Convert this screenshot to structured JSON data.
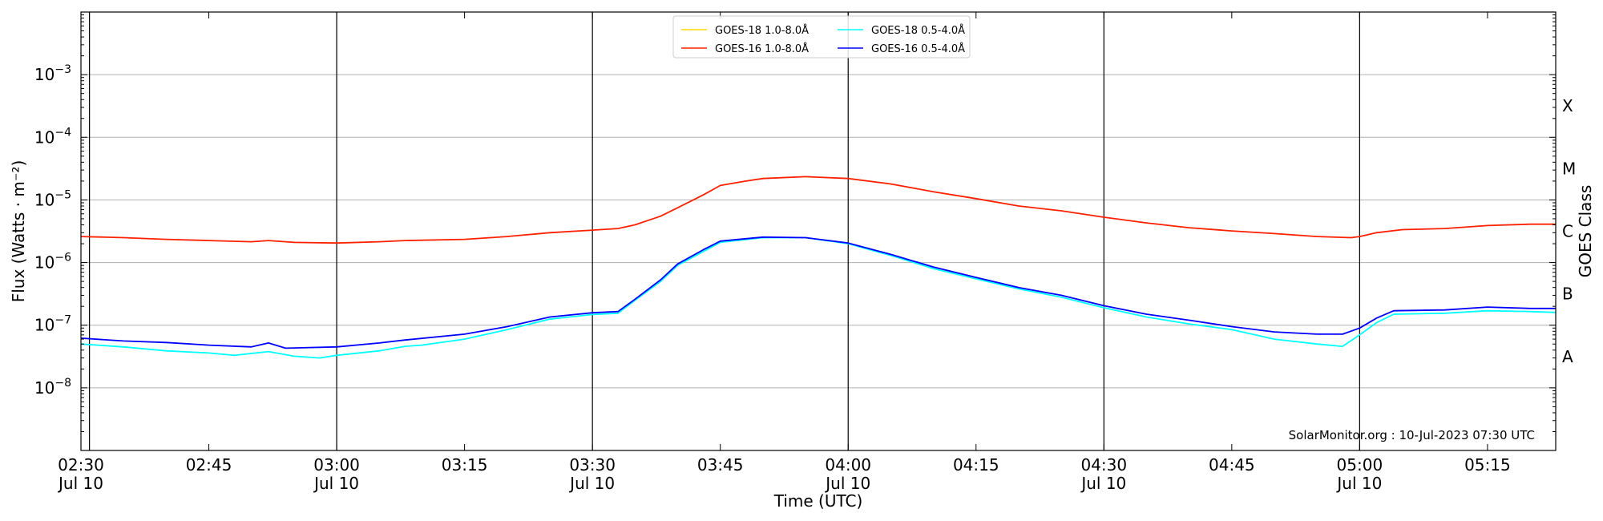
{
  "chart_data": {
    "type": "line",
    "title": "",
    "xlabel": "Time (UTC)",
    "ylabel": "Flux (Watts · m⁻²)",
    "ylabel_right": "GOES Class",
    "y_scale": "log",
    "ylim": [
      1e-09,
      0.01
    ],
    "xlim": [
      "2023-07-10 02:30",
      "2023-07-10 05:23"
    ],
    "grid": "horizontal at decades",
    "legend_placement": "top-center",
    "x_ticks": [
      {
        "time": "02:30",
        "label": "02:30",
        "sublabel": "Jul 10"
      },
      {
        "time": "02:45",
        "label": "02:45",
        "sublabel": ""
      },
      {
        "time": "03:00",
        "label": "03:00",
        "sublabel": "Jul 10"
      },
      {
        "time": "03:15",
        "label": "03:15",
        "sublabel": ""
      },
      {
        "time": "03:30",
        "label": "03:30",
        "sublabel": "Jul 10"
      },
      {
        "time": "03:45",
        "label": "03:45",
        "sublabel": ""
      },
      {
        "time": "04:00",
        "label": "04:00",
        "sublabel": "Jul 10"
      },
      {
        "time": "04:15",
        "label": "04:15",
        "sublabel": ""
      },
      {
        "time": "04:30",
        "label": "04:30",
        "sublabel": "Jul 10"
      },
      {
        "time": "04:45",
        "label": "04:45",
        "sublabel": ""
      },
      {
        "time": "05:00",
        "label": "05:00",
        "sublabel": "Jul 10"
      },
      {
        "time": "05:15",
        "label": "05:15",
        "sublabel": ""
      }
    ],
    "vertical_lines": [
      "02:31",
      "03:00",
      "03:30",
      "04:00",
      "04:30",
      "05:00"
    ],
    "y_ticks": [
      {
        "exp": -8,
        "label": "10",
        "sup": "−8"
      },
      {
        "exp": -7,
        "label": "10",
        "sup": "−7"
      },
      {
        "exp": -6,
        "label": "10",
        "sup": "−6"
      },
      {
        "exp": -5,
        "label": "10",
        "sup": "−5"
      },
      {
        "exp": -4,
        "label": "10",
        "sup": "−4"
      },
      {
        "exp": -3,
        "label": "10",
        "sup": "−3"
      }
    ],
    "goes_classes": [
      {
        "label": "A",
        "exp": -7.5
      },
      {
        "label": "B",
        "exp": -6.5
      },
      {
        "label": "C",
        "exp": -5.5
      },
      {
        "label": "M",
        "exp": -4.5
      },
      {
        "label": "X",
        "exp": -3.5
      }
    ],
    "series": [
      {
        "name": "GOES-18 1.0-8.0Å",
        "color": "#ffd700",
        "points": []
      },
      {
        "name": "GOES-16 1.0-8.0Å",
        "color": "#ff2000",
        "points": [
          [
            "02:30",
            2.6e-06
          ],
          [
            "02:35",
            2.5e-06
          ],
          [
            "02:40",
            2.35e-06
          ],
          [
            "02:45",
            2.25e-06
          ],
          [
            "02:50",
            2.15e-06
          ],
          [
            "02:52",
            2.25e-06
          ],
          [
            "02:55",
            2.1e-06
          ],
          [
            "03:00",
            2.05e-06
          ],
          [
            "03:05",
            2.15e-06
          ],
          [
            "03:08",
            2.25e-06
          ],
          [
            "03:15",
            2.35e-06
          ],
          [
            "03:20",
            2.6e-06
          ],
          [
            "03:25",
            3e-06
          ],
          [
            "03:30",
            3.3e-06
          ],
          [
            "03:33",
            3.5e-06
          ],
          [
            "03:35",
            4e-06
          ],
          [
            "03:38",
            5.5e-06
          ],
          [
            "03:40",
            7.5e-06
          ],
          [
            "03:43",
            1.2e-05
          ],
          [
            "03:45",
            1.7e-05
          ],
          [
            "03:48",
            2e-05
          ],
          [
            "03:50",
            2.2e-05
          ],
          [
            "03:55",
            2.35e-05
          ],
          [
            "04:00",
            2.2e-05
          ],
          [
            "04:05",
            1.8e-05
          ],
          [
            "04:10",
            1.35e-05
          ],
          [
            "04:15",
            1.05e-05
          ],
          [
            "04:20",
            8e-06
          ],
          [
            "04:25",
            6.7e-06
          ],
          [
            "04:30",
            5.3e-06
          ],
          [
            "04:35",
            4.3e-06
          ],
          [
            "04:40",
            3.6e-06
          ],
          [
            "04:45",
            3.2e-06
          ],
          [
            "04:50",
            2.9e-06
          ],
          [
            "04:55",
            2.6e-06
          ],
          [
            "04:59",
            2.5e-06
          ],
          [
            "05:00",
            2.6e-06
          ],
          [
            "05:02",
            3e-06
          ],
          [
            "05:05",
            3.35e-06
          ],
          [
            "05:10",
            3.5e-06
          ],
          [
            "05:15",
            3.9e-06
          ],
          [
            "05:20",
            4.1e-06
          ],
          [
            "05:23",
            4.1e-06
          ]
        ]
      },
      {
        "name": "GOES-18 0.5-4.0Å",
        "color": "#00ffff",
        "points": [
          [
            "02:30",
            5e-08
          ],
          [
            "02:35",
            4.5e-08
          ],
          [
            "02:40",
            3.9e-08
          ],
          [
            "02:45",
            3.6e-08
          ],
          [
            "02:48",
            3.3e-08
          ],
          [
            "02:52",
            3.8e-08
          ],
          [
            "02:55",
            3.2e-08
          ],
          [
            "02:58",
            3e-08
          ],
          [
            "03:00",
            3.3e-08
          ],
          [
            "03:05",
            3.9e-08
          ],
          [
            "03:08",
            4.6e-08
          ],
          [
            "03:10",
            4.8e-08
          ],
          [
            "03:15",
            6e-08
          ],
          [
            "03:20",
            8.5e-08
          ],
          [
            "03:25",
            1.25e-07
          ],
          [
            "03:30",
            1.48e-07
          ],
          [
            "03:33",
            1.55e-07
          ],
          [
            "03:35",
            2.5e-07
          ],
          [
            "03:38",
            5e-07
          ],
          [
            "03:40",
            9e-07
          ],
          [
            "03:43",
            1.5e-06
          ],
          [
            "03:45",
            2.1e-06
          ],
          [
            "03:50",
            2.5e-06
          ],
          [
            "03:55",
            2.5e-06
          ],
          [
            "04:00",
            2e-06
          ],
          [
            "04:05",
            1.3e-06
          ],
          [
            "04:10",
            8e-07
          ],
          [
            "04:15",
            5.5e-07
          ],
          [
            "04:20",
            3.8e-07
          ],
          [
            "04:25",
            2.8e-07
          ],
          [
            "04:30",
            1.9e-07
          ],
          [
            "04:35",
            1.35e-07
          ],
          [
            "04:40",
            1.05e-07
          ],
          [
            "04:45",
            8.5e-08
          ],
          [
            "04:50",
            6e-08
          ],
          [
            "04:55",
            5e-08
          ],
          [
            "04:58",
            4.6e-08
          ],
          [
            "05:00",
            7e-08
          ],
          [
            "05:02",
            1.1e-07
          ],
          [
            "05:04",
            1.5e-07
          ],
          [
            "05:10",
            1.55e-07
          ],
          [
            "05:15",
            1.7e-07
          ],
          [
            "05:20",
            1.65e-07
          ],
          [
            "05:23",
            1.6e-07
          ]
        ]
      },
      {
        "name": "GOES-16 0.5-4.0Å",
        "color": "#0000ff",
        "points": [
          [
            "02:30",
            6.2e-08
          ],
          [
            "02:35",
            5.6e-08
          ],
          [
            "02:40",
            5.3e-08
          ],
          [
            "02:45",
            4.8e-08
          ],
          [
            "02:50",
            4.5e-08
          ],
          [
            "02:52",
            5.2e-08
          ],
          [
            "02:54",
            4.3e-08
          ],
          [
            "03:00",
            4.5e-08
          ],
          [
            "03:05",
            5.2e-08
          ],
          [
            "03:08",
            5.8e-08
          ],
          [
            "03:15",
            7.2e-08
          ],
          [
            "03:20",
            9.5e-08
          ],
          [
            "03:25",
            1.35e-07
          ],
          [
            "03:30",
            1.58e-07
          ],
          [
            "03:33",
            1.65e-07
          ],
          [
            "03:35",
            2.6e-07
          ],
          [
            "03:38",
            5.3e-07
          ],
          [
            "03:40",
            9.5e-07
          ],
          [
            "03:43",
            1.6e-06
          ],
          [
            "03:45",
            2.2e-06
          ],
          [
            "03:50",
            2.55e-06
          ],
          [
            "03:55",
            2.5e-06
          ],
          [
            "04:00",
            2.05e-06
          ],
          [
            "04:05",
            1.35e-06
          ],
          [
            "04:10",
            8.5e-07
          ],
          [
            "04:15",
            5.8e-07
          ],
          [
            "04:20",
            4e-07
          ],
          [
            "04:25",
            3e-07
          ],
          [
            "04:30",
            2.05e-07
          ],
          [
            "04:35",
            1.5e-07
          ],
          [
            "04:40",
            1.2e-07
          ],
          [
            "04:45",
            9.5e-08
          ],
          [
            "04:50",
            7.8e-08
          ],
          [
            "04:55",
            7.2e-08
          ],
          [
            "04:58",
            7.2e-08
          ],
          [
            "05:00",
            9e-08
          ],
          [
            "05:02",
            1.3e-07
          ],
          [
            "05:04",
            1.7e-07
          ],
          [
            "05:10",
            1.75e-07
          ],
          [
            "05:15",
            1.95e-07
          ],
          [
            "05:20",
            1.85e-07
          ],
          [
            "05:23",
            1.85e-07
          ]
        ]
      }
    ]
  },
  "credit": "SolarMonitor.org : 10-Jul-2023 07:30 UTC"
}
